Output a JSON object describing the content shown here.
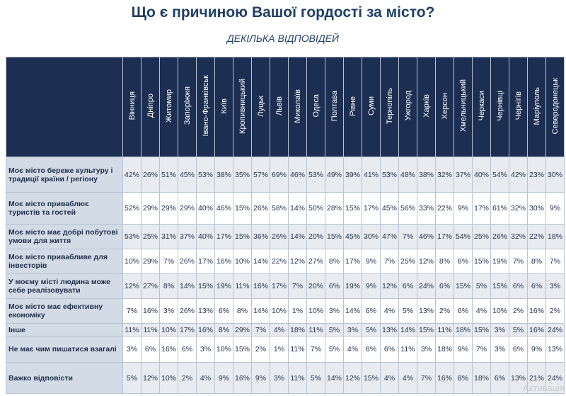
{
  "header": {
    "title": "Що є причиною Вашої гордості за місто?",
    "subtitle": "ДЕКІЛЬКА ВІДПОВІДЕЙ"
  },
  "table": {
    "columns": [
      "Вінниця",
      "Дніпро",
      "Житомир",
      "Запоріжжя",
      "Івано-Франківськ",
      "Київ",
      "Кропивницький",
      "Луцьк",
      "Львів",
      "Миколаїв",
      "Одеса",
      "Полтава",
      "Рівне",
      "Суми",
      "Тернопіль",
      "Ужгород",
      "Харків",
      "Херсон",
      "Хмельницький",
      "Черкаси",
      "Чернівці",
      "Чернігів",
      "Маріуполь",
      "Северодонецьк"
    ],
    "rows": [
      {
        "label": "Моє місто береже культуру і традиції країни / регіону",
        "cells": [
          "42%",
          "26%",
          "51%",
          "45%",
          "53%",
          "38%",
          "35%",
          "57%",
          "69%",
          "46%",
          "53%",
          "49%",
          "39%",
          "41%",
          "53%",
          "48%",
          "38%",
          "32%",
          "37%",
          "40%",
          "54%",
          "42%",
          "23%",
          "30%"
        ]
      },
      {
        "label": "Моє місто приваблює туристів та гостей",
        "cells": [
          "52%",
          "29%",
          "29%",
          "29%",
          "40%",
          "46%",
          "15%",
          "26%",
          "58%",
          "14%",
          "50%",
          "28%",
          "15%",
          "17%",
          "45%",
          "56%",
          "33%",
          "22%",
          "9%",
          "17%",
          "61%",
          "32%",
          "30%",
          "9%"
        ]
      },
      {
        "label": "Моє місто має добрі побутові умови для життя",
        "cells": [
          "53%",
          "25%",
          "31%",
          "37%",
          "40%",
          "17%",
          "15%",
          "36%",
          "26%",
          "14%",
          "20%",
          "15%",
          "45%",
          "30%",
          "47%",
          "7%",
          "46%",
          "17%",
          "54%",
          "25%",
          "26%",
          "32%",
          "22%",
          "18%"
        ]
      },
      {
        "label": "Моє місто привабливе для інвесторів",
        "cells": [
          "10%",
          "29%",
          "7%",
          "26%",
          "17%",
          "16%",
          "10%",
          "14%",
          "22%",
          "12%",
          "27%",
          "8%",
          "17%",
          "9%",
          "7%",
          "25%",
          "12%",
          "8%",
          "8%",
          "15%",
          "19%",
          "7%",
          "8%",
          "7%"
        ]
      },
      {
        "label": "У моєму місті людина може себе реалізовувати",
        "cells": [
          "12%",
          "27%",
          "8%",
          "14%",
          "15%",
          "19%",
          "11%",
          "16%",
          "17%",
          "7%",
          "20%",
          "6%",
          "19%",
          "9%",
          "12%",
          "6%",
          "24%",
          "6%",
          "15%",
          "5%",
          "15%",
          "6%",
          "6%",
          "3%"
        ]
      },
      {
        "label": "Моє місто має ефективну економіку",
        "cells": [
          "7%",
          "16%",
          "3%",
          "26%",
          "13%",
          "6%",
          "8%",
          "14%",
          "10%",
          "1%",
          "10%",
          "3%",
          "14%",
          "6%",
          "4%",
          "5%",
          "13%",
          "2%",
          "6%",
          "4%",
          "10%",
          "2%",
          "16%",
          "2%"
        ]
      },
      {
        "label": "Інше",
        "cells": [
          "11%",
          "11%",
          "10%",
          "17%",
          "16%",
          "8%",
          "29%",
          "7%",
          "4%",
          "18%",
          "11%",
          "5%",
          "3%",
          "5%",
          "13%",
          "14%",
          "15%",
          "11%",
          "18%",
          "15%",
          "3%",
          "5%",
          "16%",
          "24%"
        ]
      },
      {
        "label": "Не має чим пишатися взагалі",
        "cells": [
          "3%",
          "6%",
          "16%",
          "6%",
          "3%",
          "10%",
          "15%",
          "2%",
          "1%",
          "11%",
          "7%",
          "5%",
          "4%",
          "8%",
          "6%",
          "11%",
          "3%",
          "18%",
          "9%",
          "7%",
          "3%",
          "6%",
          "9%",
          "13%"
        ]
      },
      {
        "label": "Важко відповісти",
        "cells": [
          "5%",
          "12%",
          "10%",
          "2%",
          "4%",
          "9%",
          "16%",
          "9%",
          "3%",
          "11%",
          "5%",
          "14%",
          "12%",
          "15%",
          "4%",
          "4%",
          "7%",
          "16%",
          "8%",
          "18%",
          "6%",
          "13%",
          "21%",
          "24%"
        ]
      }
    ]
  },
  "watermark": "Активація"
}
